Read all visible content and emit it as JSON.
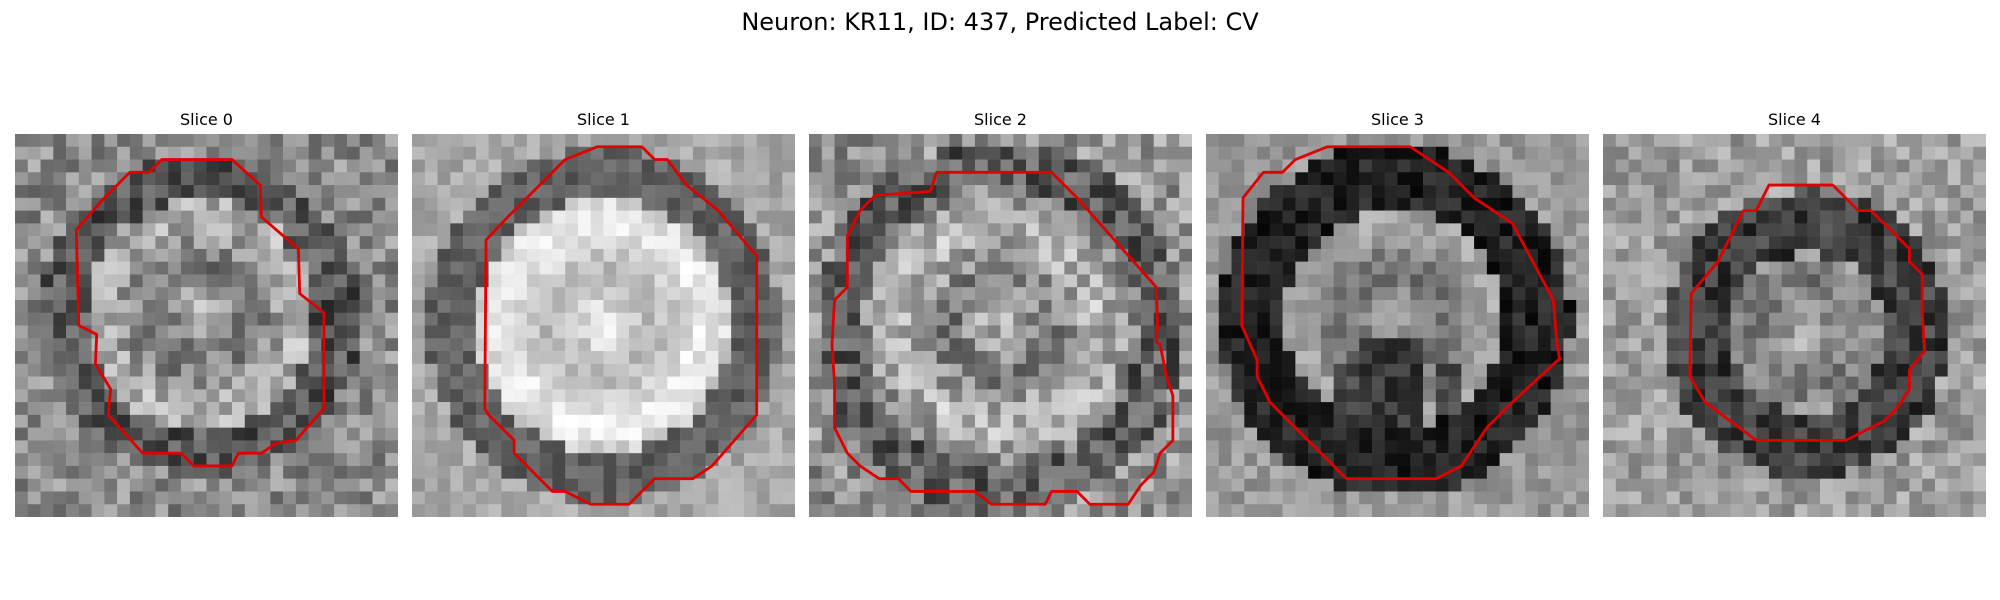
{
  "figure": {
    "title": "Neuron: KR11, ID: 437, Predicted Label: CV"
  },
  "panels": [
    {
      "title": "Slice 0",
      "overlay_color": "#e00000",
      "image": "grayscale-noisy-cell-crop"
    },
    {
      "title": "Slice 1",
      "overlay_color": "#e00000",
      "image": "grayscale-bright-cell-crop"
    },
    {
      "title": "Slice 2",
      "overlay_color": "#e00000",
      "image": "grayscale-textured-cell-crop"
    },
    {
      "title": "Slice 3",
      "overlay_color": "#e00000",
      "image": "grayscale-dark-ring-cell-crop"
    },
    {
      "title": "Slice 4",
      "overlay_color": "#e00000",
      "image": "grayscale-small-cell-crop"
    }
  ]
}
